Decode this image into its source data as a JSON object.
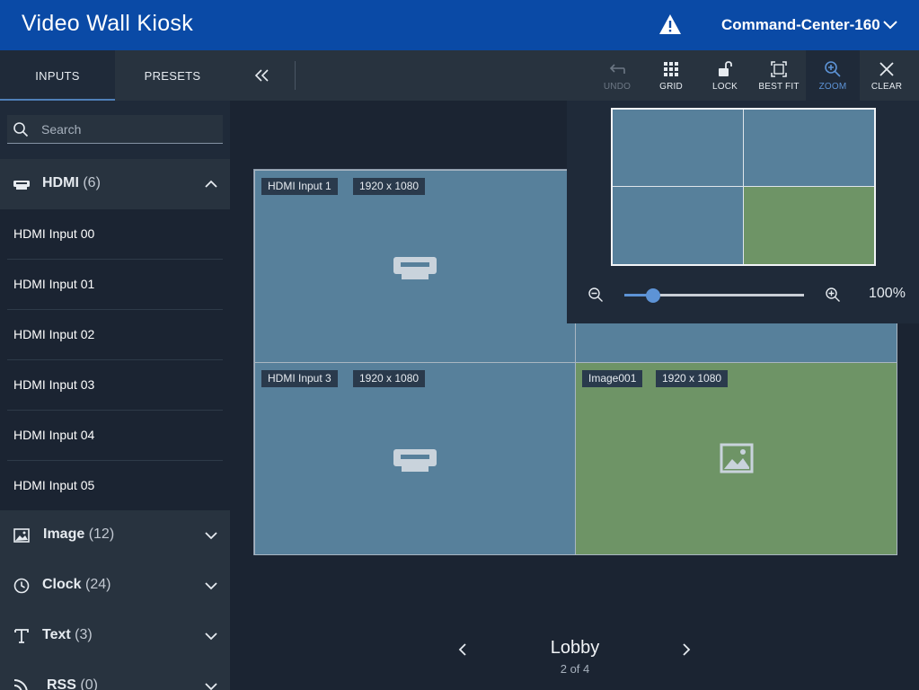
{
  "header": {
    "title": "Video Wall Kiosk",
    "room": "Command-Center-160",
    "warning_icon": "warning-icon",
    "brand_color": "#0a4aa6"
  },
  "sidebar": {
    "tabs": [
      {
        "label": "INPUTS",
        "active": true
      },
      {
        "label": "PRESETS",
        "active": false
      }
    ],
    "search": {
      "placeholder": "Search",
      "value": ""
    },
    "categories": [
      {
        "label": "HDMI",
        "count": "(6)",
        "icon": "hdmi-icon",
        "expanded": true
      },
      {
        "label": "Image",
        "count": "(12)",
        "icon": "image-icon",
        "expanded": false
      },
      {
        "label": "Clock",
        "count": "(24)",
        "icon": "clock-icon",
        "expanded": false
      },
      {
        "label": "Text",
        "count": "(3)",
        "icon": "text-icon",
        "expanded": false
      },
      {
        "label": "RSS",
        "count": "(0)",
        "icon": "rss-icon",
        "expanded": false
      }
    ],
    "hdmi_items": [
      "HDMI Input 00",
      "HDMI Input 01",
      "HDMI Input 02",
      "HDMI Input 03",
      "HDMI Input 04",
      "HDMI Input 05"
    ]
  },
  "toolbar": {
    "tools": [
      {
        "label": "UNDO",
        "icon": "undo-icon",
        "state": "disabled"
      },
      {
        "label": "GRID",
        "icon": "grid-icon",
        "state": "normal"
      },
      {
        "label": "LOCK",
        "icon": "unlock-icon",
        "state": "normal"
      },
      {
        "label": "BEST FIT",
        "icon": "best-fit-icon",
        "state": "normal"
      },
      {
        "label": "ZOOM",
        "icon": "zoom-icon",
        "state": "active"
      },
      {
        "label": "CLEAR",
        "icon": "close-icon",
        "state": "normal"
      }
    ]
  },
  "wall": {
    "cells": [
      {
        "name": "HDMI Input 1",
        "resolution": "1920 x 1080",
        "type": "hdmi"
      },
      {
        "name": "",
        "resolution": "",
        "type": "hdmi"
      },
      {
        "name": "HDMI Input 3",
        "resolution": "1920 x 1080",
        "type": "hdmi"
      },
      {
        "name": "Image001",
        "resolution": "1920 x 1080",
        "type": "image"
      }
    ],
    "colors": {
      "hdmi": "#57809b",
      "image": "#6e9466"
    }
  },
  "zoom": {
    "value_text": "100%",
    "slider_fraction": 0.16
  },
  "pager": {
    "preset_name": "Lobby",
    "position": "2 of 4"
  }
}
